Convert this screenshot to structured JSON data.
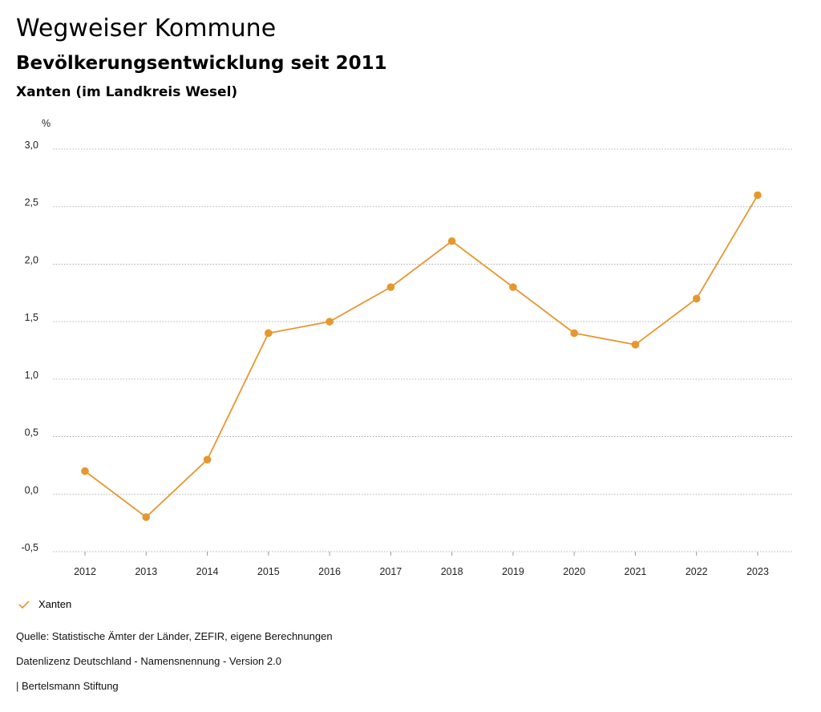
{
  "header": {
    "title": "Wegweiser Kommune",
    "subtitle": "Bevölkerungsentwicklung seit 2011",
    "region": "Xanten (im Landkreis Wesel)"
  },
  "chart_data": {
    "type": "line",
    "ylabel": "%",
    "categories": [
      "2012",
      "2013",
      "2014",
      "2015",
      "2016",
      "2017",
      "2018",
      "2019",
      "2020",
      "2021",
      "2022",
      "2023"
    ],
    "series": [
      {
        "name": "Xanten",
        "color": "#e8962e",
        "values": [
          0.2,
          -0.2,
          0.3,
          1.4,
          1.5,
          1.8,
          2.2,
          1.8,
          1.4,
          1.3,
          1.7,
          2.6
        ]
      }
    ],
    "yticks": [
      3.0,
      2.5,
      2.0,
      1.5,
      1.0,
      0.5,
      0.0,
      -0.5
    ],
    "ytick_labels": [
      "3,0",
      "2,5",
      "2,0",
      "1,5",
      "1,0",
      "0,5",
      "0,0",
      "-0,5"
    ],
    "ylim": [
      -0.5,
      3.0
    ],
    "grid": true,
    "legend_position": "bottom-left"
  },
  "footer": {
    "source": "Quelle: Statistische Ämter der Länder, ZEFIR, eigene Berechnungen",
    "license": "Datenlizenz Deutschland - Namensnennung - Version 2.0",
    "publisher": "| Bertelsmann Stiftung"
  }
}
